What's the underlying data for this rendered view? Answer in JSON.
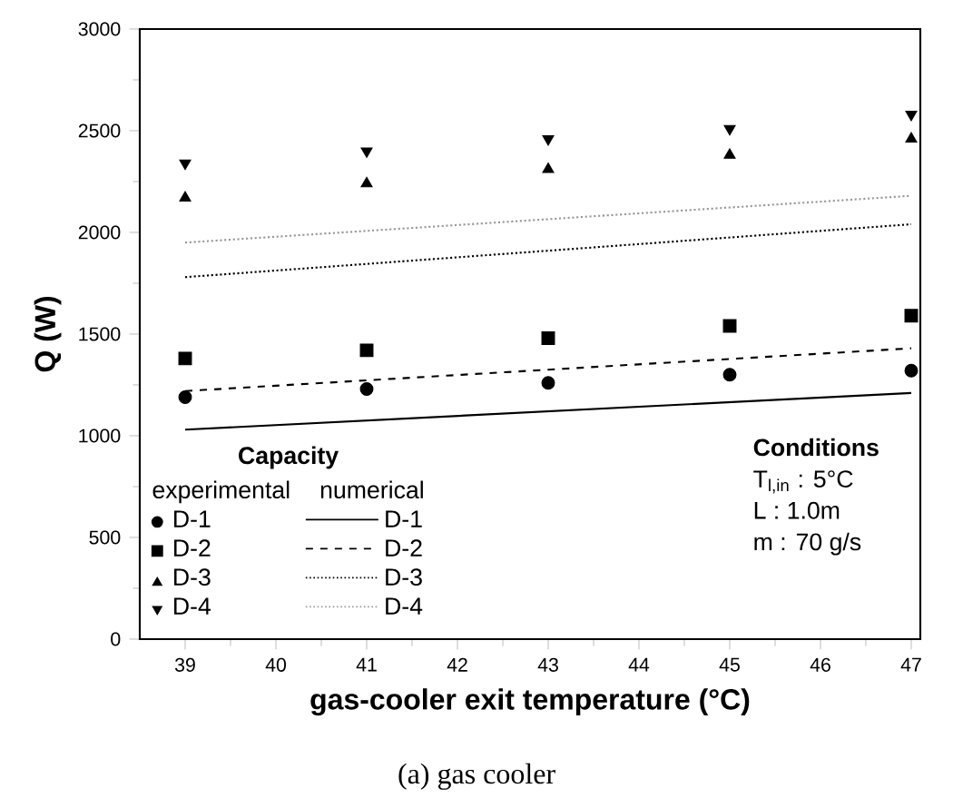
{
  "chart_data": {
    "type": "scatter",
    "xlabel": "gas-cooler exit temperature (°C)",
    "ylabel": "Q (W)",
    "legend_title": "Capacity",
    "legend": "bottom left",
    "xlim": [
      38.5,
      47.1
    ],
    "ylim": [
      0,
      3000
    ],
    "xticks": [
      39,
      40,
      41,
      42,
      43,
      44,
      45,
      46,
      47
    ],
    "yticks": [
      0,
      500,
      1000,
      1500,
      2000,
      2500,
      3000
    ],
    "series": [
      {
        "name": "D-1",
        "marker": "circle",
        "color": "#000000",
        "x": [
          39,
          41,
          43,
          45,
          47
        ],
        "values": [
          1190,
          1230,
          1260,
          1300,
          1320
        ]
      },
      {
        "name": "D-2",
        "marker": "square",
        "color": "#000000",
        "x": [
          39,
          41,
          43,
          45,
          47
        ],
        "values": [
          1380,
          1420,
          1480,
          1540,
          1590
        ]
      },
      {
        "name": "D-3",
        "marker": "triangle",
        "color": "#000000",
        "x": [
          39,
          41,
          43,
          45,
          47
        ],
        "values": [
          2170,
          2240,
          2310,
          2380,
          2460
        ]
      },
      {
        "name": "D-4",
        "marker": "triangle-down",
        "color": "#000000",
        "x": [
          39,
          41,
          43,
          45,
          47
        ],
        "values": [
          2340,
          2400,
          2460,
          2510,
          2580
        ]
      },
      {
        "name": "D-1",
        "type": "line",
        "line_style": "solid",
        "color": "#000000",
        "x": [
          39,
          47
        ],
        "values": [
          1030,
          1210
        ]
      },
      {
        "name": "D-2",
        "type": "line",
        "line_style": "dashed",
        "color": "#000000",
        "x": [
          39,
          47
        ],
        "values": [
          1220,
          1430
        ]
      },
      {
        "name": "D-3",
        "type": "line",
        "line_style": "dotted",
        "color": "#000000",
        "x": [
          39,
          47
        ],
        "values": [
          1780,
          2040
        ]
      },
      {
        "name": "D-4",
        "type": "line",
        "line_style": "dotted",
        "color": "#999999",
        "x": [
          39,
          47
        ],
        "values": [
          1950,
          2180
        ]
      }
    ],
    "annotations": [
      "experimental",
      "numerical",
      "Conditions",
      "T$_{l,in}$ : 5°C",
      "L : 1.0m",
      "m : 70 g/s",
      "(a) gas cooler"
    ]
  }
}
